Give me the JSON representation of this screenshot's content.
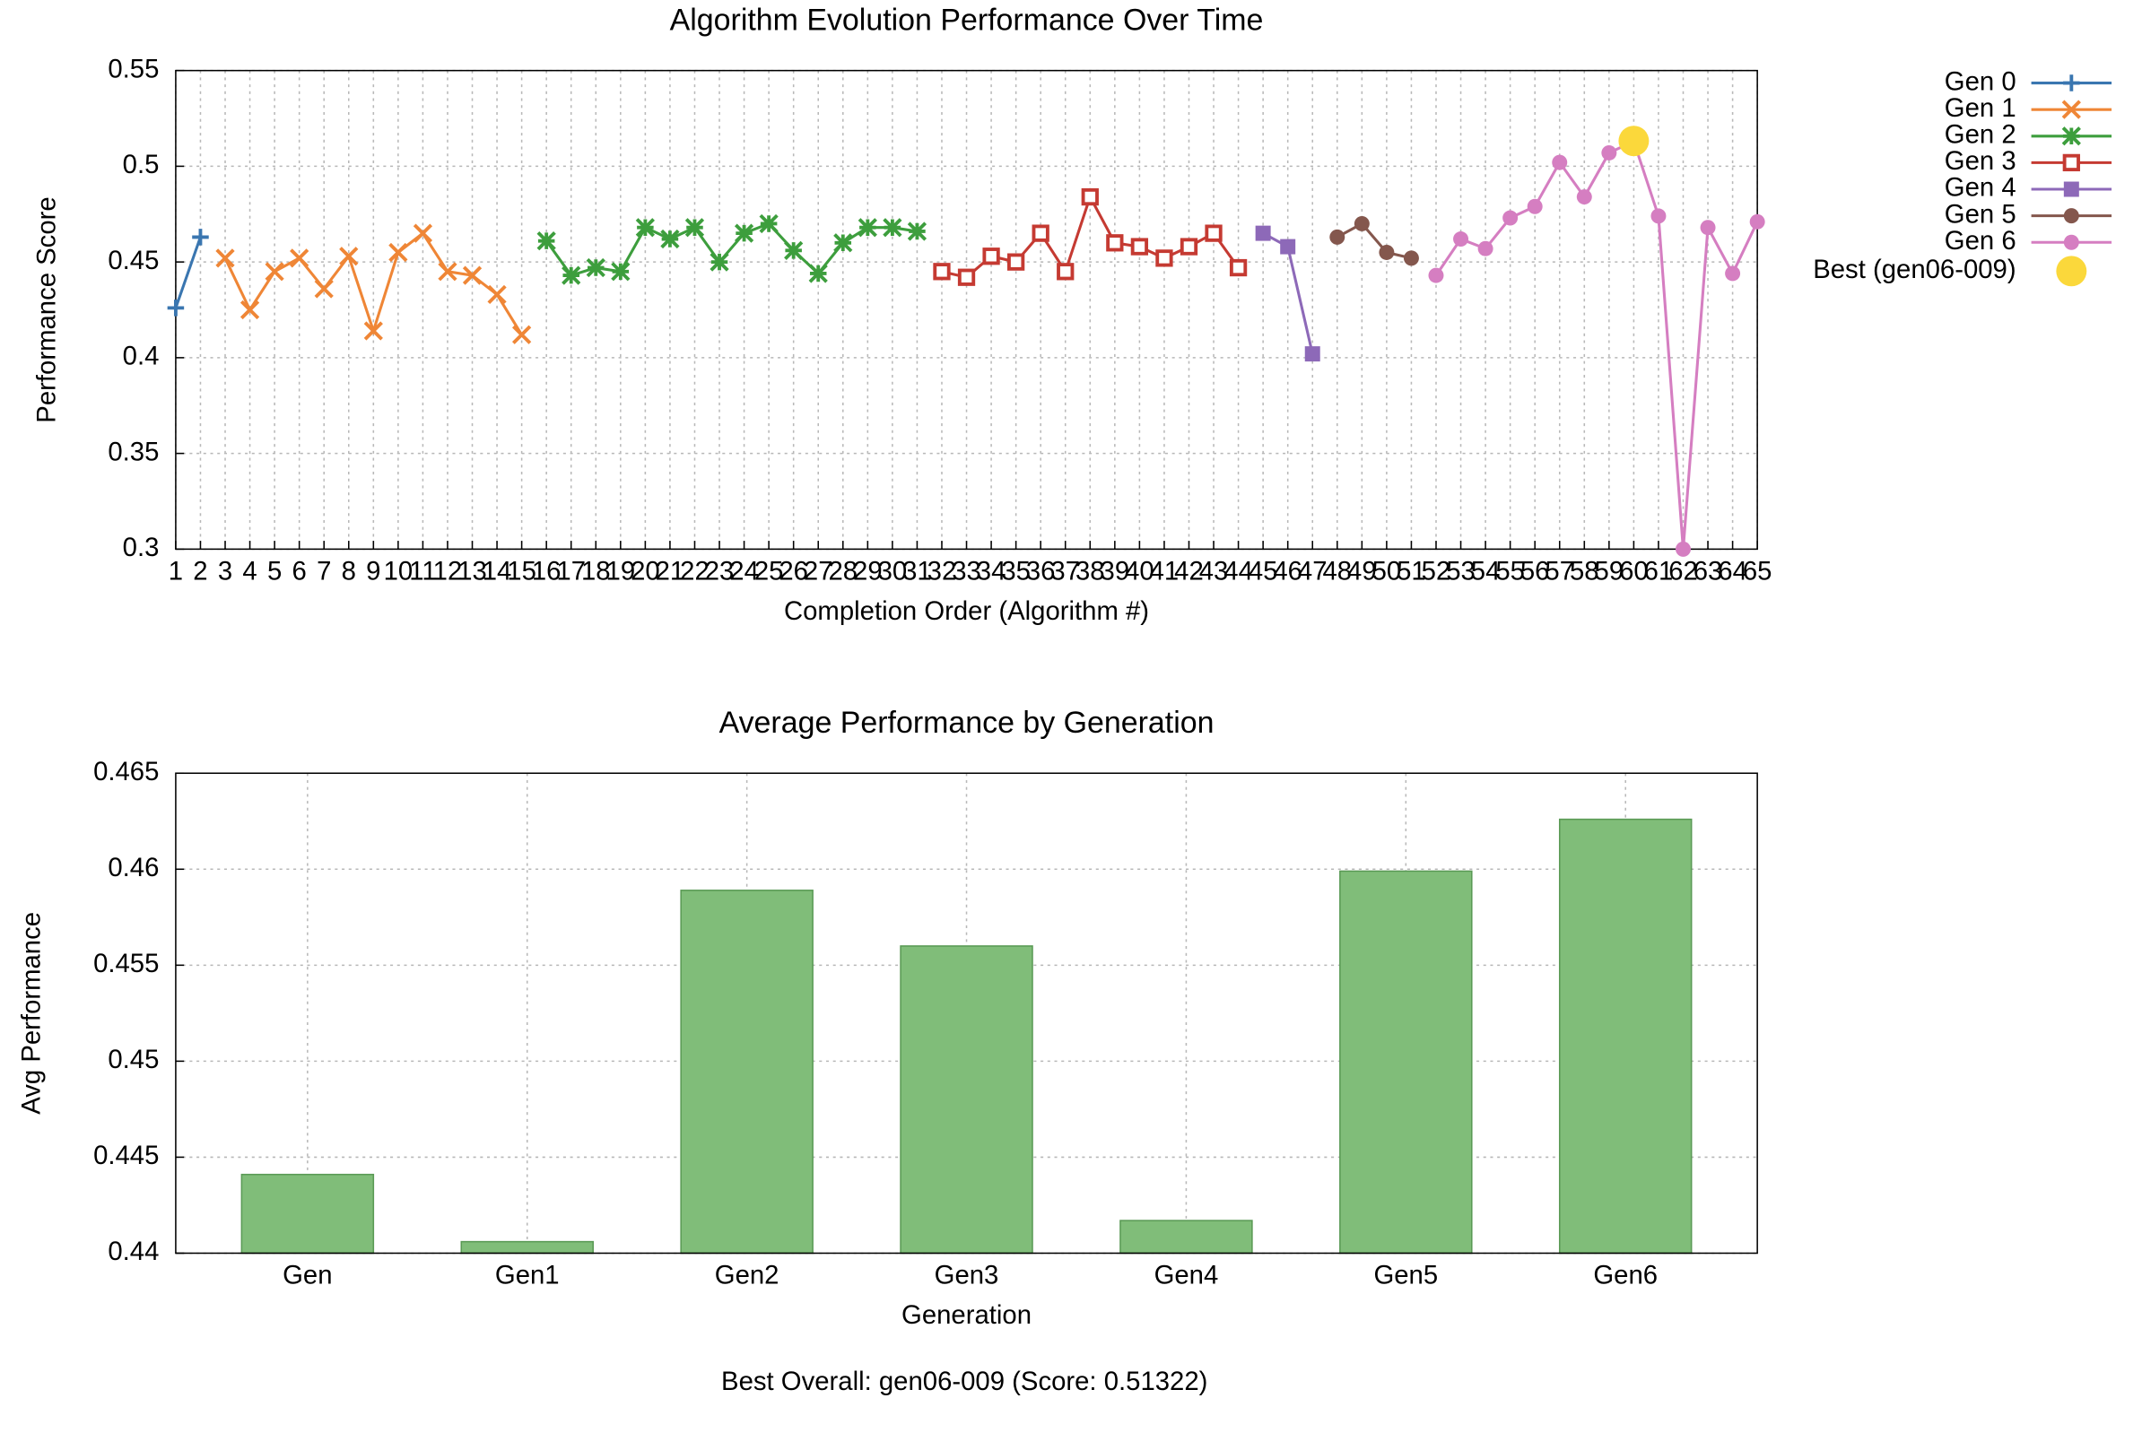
{
  "chart_data": [
    {
      "type": "line",
      "title": "Algorithm Evolution Performance Over Time",
      "xlabel": "Completion Order (Algorithm #)",
      "ylabel": "Performance Score",
      "xlim": [
        1,
        65
      ],
      "xticks": [
        1,
        2,
        3,
        4,
        5,
        6,
        7,
        8,
        9,
        10,
        11,
        12,
        13,
        14,
        15,
        16,
        17,
        18,
        19,
        20,
        21,
        22,
        23,
        24,
        25,
        26,
        27,
        28,
        29,
        30,
        31,
        32,
        33,
        34,
        35,
        36,
        37,
        38,
        39,
        40,
        41,
        42,
        43,
        44,
        45,
        46,
        47,
        48,
        49,
        50,
        51,
        52,
        53,
        54,
        55,
        56,
        57,
        58,
        59,
        60,
        61,
        62,
        63,
        64,
        65
      ],
      "ylim": [
        0.3,
        0.55
      ],
      "yticks": [
        0.3,
        0.35,
        0.4,
        0.45,
        0.5,
        0.55
      ],
      "grid": true,
      "legend": "right",
      "series": [
        {
          "name": "Gen 0",
          "color": "#3a76b0",
          "marker": "plus",
          "x": [
            1,
            2
          ],
          "values": [
            0.426,
            0.463
          ]
        },
        {
          "name": "Gen 1",
          "color": "#ef8636",
          "marker": "cross",
          "x": [
            3,
            4,
            5,
            6,
            7,
            8,
            9,
            10,
            11,
            12,
            13,
            14,
            15
          ],
          "values": [
            0.452,
            0.425,
            0.445,
            0.452,
            0.436,
            0.453,
            0.414,
            0.455,
            0.465,
            0.445,
            0.443,
            0.433,
            0.412
          ]
        },
        {
          "name": "Gen 2",
          "color": "#3d9e3d",
          "marker": "star",
          "x": [
            16,
            17,
            18,
            19,
            20,
            21,
            22,
            23,
            24,
            25,
            26,
            27,
            28,
            29,
            30,
            31
          ],
          "values": [
            0.461,
            0.443,
            0.447,
            0.445,
            0.468,
            0.462,
            0.468,
            0.45,
            0.465,
            0.47,
            0.456,
            0.444,
            0.46,
            0.468,
            0.468,
            0.466
          ]
        },
        {
          "name": "Gen 3",
          "color": "#c53a32",
          "marker": "open-square",
          "x": [
            32,
            33,
            34,
            35,
            36,
            37,
            38,
            39,
            40,
            41,
            42,
            43,
            44
          ],
          "values": [
            0.445,
            0.442,
            0.453,
            0.45,
            0.465,
            0.445,
            0.484,
            0.46,
            0.458,
            0.452,
            0.458,
            0.465,
            0.447
          ]
        },
        {
          "name": "Gen 4",
          "color": "#8d69b8",
          "marker": "square",
          "x": [
            45,
            46,
            47
          ],
          "values": [
            0.465,
            0.458,
            0.402
          ]
        },
        {
          "name": "Gen 5",
          "color": "#84574d",
          "marker": "circle",
          "x": [
            48,
            49,
            50,
            51
          ],
          "values": [
            0.463,
            0.47,
            0.455,
            0.452
          ]
        },
        {
          "name": "Gen 6",
          "color": "#d57ec1",
          "marker": "circle",
          "x": [
            52,
            53,
            54,
            55,
            56,
            57,
            58,
            59,
            60,
            61,
            62,
            63,
            64,
            65
          ],
          "values": [
            0.443,
            0.462,
            0.457,
            0.473,
            0.479,
            0.502,
            0.484,
            0.507,
            0.513,
            0.474,
            0.3,
            0.468,
            0.444,
            0.471
          ]
        },
        {
          "name": "Best (gen06-009)",
          "color": "#fbd83b",
          "marker": "big-circle",
          "x": [
            60
          ],
          "values": [
            0.51322
          ]
        }
      ]
    },
    {
      "type": "bar",
      "title": "Average Performance by Generation",
      "xlabel": "Generation",
      "ylabel": "Avg Performance",
      "categories": [
        "Gen",
        "Gen1",
        "Gen2",
        "Gen3",
        "Gen4",
        "Gen5",
        "Gen6"
      ],
      "values": [
        0.4441,
        0.4406,
        0.4589,
        0.456,
        0.4417,
        0.4599,
        0.4626
      ],
      "color": "#80bd79",
      "ylim": [
        0.44,
        0.465
      ],
      "yticks": [
        0.44,
        0.445,
        0.45,
        0.455,
        0.46,
        0.465
      ],
      "grid": true
    }
  ],
  "footer": "Best Overall: gen06-009 (Score: 0.51322)"
}
